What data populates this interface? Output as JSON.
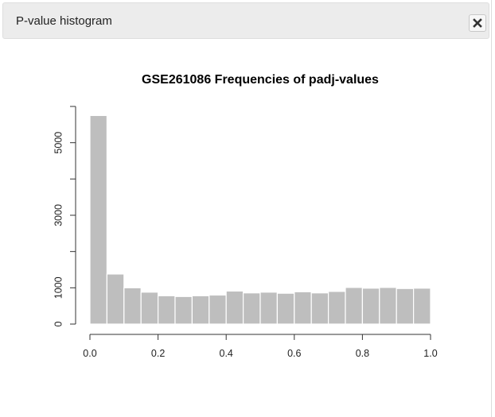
{
  "panel": {
    "title": "P-value histogram",
    "close_icon": "close-icon"
  },
  "chart_data": {
    "type": "bar",
    "title": "GSE261086 Frequencies of padj-values",
    "xlabel": "",
    "ylabel": "",
    "bins": [
      [
        0.0,
        0.05
      ],
      [
        0.05,
        0.1
      ],
      [
        0.1,
        0.15
      ],
      [
        0.15,
        0.2
      ],
      [
        0.2,
        0.25
      ],
      [
        0.25,
        0.3
      ],
      [
        0.3,
        0.35
      ],
      [
        0.35,
        0.4
      ],
      [
        0.4,
        0.45
      ],
      [
        0.45,
        0.5
      ],
      [
        0.5,
        0.55
      ],
      [
        0.55,
        0.6
      ],
      [
        0.6,
        0.65
      ],
      [
        0.65,
        0.7
      ],
      [
        0.7,
        0.75
      ],
      [
        0.75,
        0.8
      ],
      [
        0.8,
        0.85
      ],
      [
        0.85,
        0.9
      ],
      [
        0.9,
        0.95
      ],
      [
        0.95,
        1.0
      ]
    ],
    "values": [
      5750,
      1380,
      1000,
      880,
      780,
      760,
      780,
      800,
      910,
      860,
      880,
      850,
      890,
      860,
      900,
      1010,
      990,
      1010,
      980,
      990
    ],
    "xlim": [
      0,
      1
    ],
    "ylim": [
      0,
      6000
    ],
    "x_ticks": [
      0.0,
      0.2,
      0.4,
      0.6,
      0.8,
      1.0
    ],
    "x_tick_labels": [
      "0.0",
      "0.2",
      "0.4",
      "0.6",
      "0.8",
      "1.0"
    ],
    "y_ticks": [
      0,
      1000,
      2000,
      3000,
      4000,
      5000,
      6000
    ],
    "y_tick_labels": [
      "0",
      "1000",
      "",
      "3000",
      "",
      "5000",
      ""
    ],
    "bar_color": "#bebebe",
    "bar_border_color": "#ffffff",
    "grid": false,
    "legend": "none"
  }
}
